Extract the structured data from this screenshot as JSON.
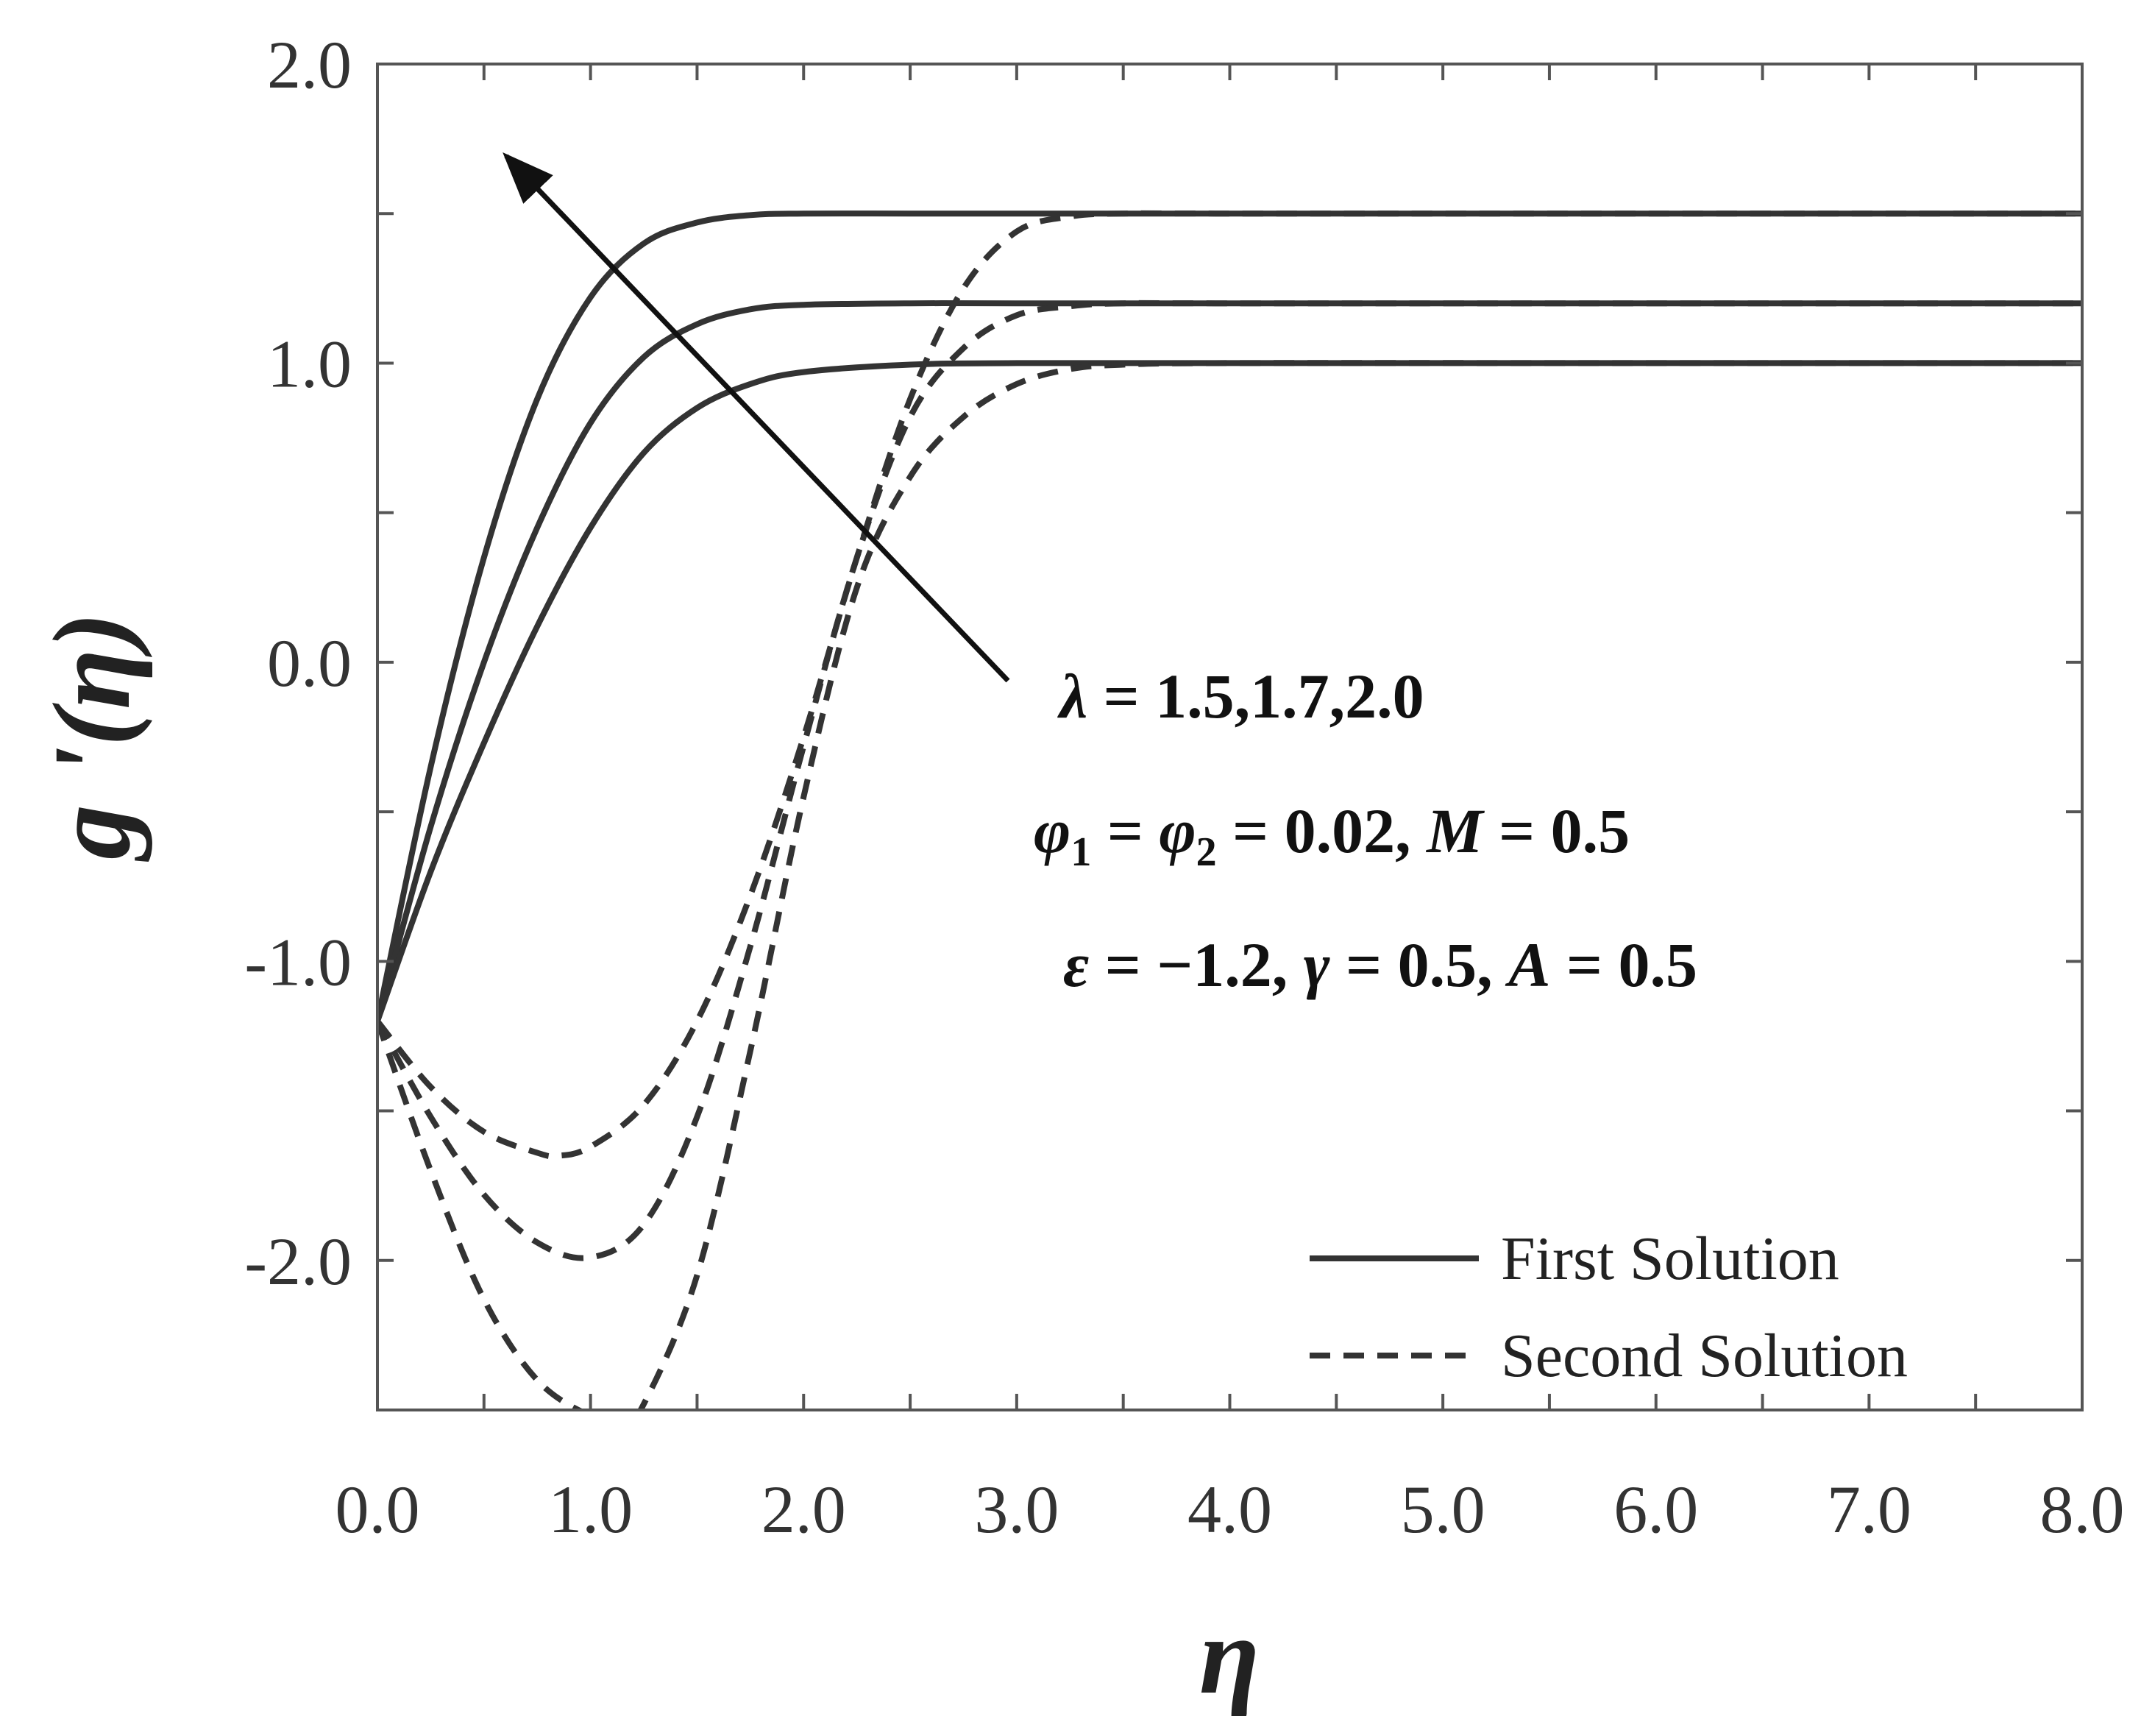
{
  "chart_data": {
    "type": "line",
    "xlabel": "η",
    "ylabel": "g '(η)",
    "xlim": [
      0,
      8
    ],
    "ylim": [
      -2.5,
      2.0
    ],
    "xticks": [
      0,
      0.5,
      1,
      1.5,
      2,
      2.5,
      3,
      3.5,
      4,
      4.5,
      5,
      5.5,
      6,
      6.5,
      7,
      7.5,
      8
    ],
    "x_tick_labels": [
      "0.0",
      "1.0",
      "2.0",
      "3.0",
      "4.0",
      "5.0",
      "6.0",
      "7.0",
      "8.0"
    ],
    "yticks": [
      2.0,
      1.5,
      1.0,
      0.5,
      0.0,
      -0.5,
      -1.0,
      -1.5,
      -2.0
    ],
    "y_tick_labels": [
      "2.0",
      "1.0",
      "0.0",
      "-1.0",
      "-2.0"
    ],
    "grid": false,
    "legend_position": "bottom-right",
    "legend": [
      {
        "label": "First Solution",
        "style": "solid"
      },
      {
        "label": "Second Solution",
        "style": "dashed"
      }
    ],
    "annotation": {
      "line1": {
        "sym": "λ",
        "rest": " = 1.5,1.7,2.0"
      },
      "line2": {
        "phi1": "φ",
        "sub1": "1",
        "eq1": " = ",
        "phi2": "φ",
        "sub2": "2",
        "eq2": " = 0.02, ",
        "m": "M",
        "eq3": " = 0.5"
      },
      "line3": {
        "eps": "ε",
        "eq1": " = −1.2, ",
        "gamma": "γ",
        "eq2": " = 0.5, ",
        "a": "A",
        "eq3": " = 0.5"
      },
      "arrow_direction": "increasing λ"
    },
    "series": [
      {
        "group": "First Solution",
        "style": "solid",
        "x": [
          0,
          0.25,
          0.5,
          0.75,
          1.0,
          1.25,
          1.5,
          1.75,
          2.0,
          2.5,
          3.0,
          4.0,
          6.0,
          8.0
        ],
        "y": [
          -1.2,
          -0.35,
          0.35,
          0.88,
          1.22,
          1.4,
          1.47,
          1.495,
          1.5,
          1.5,
          1.5,
          1.5,
          1.5,
          1.5
        ]
      },
      {
        "group": "First Solution",
        "style": "solid",
        "x": [
          0,
          0.25,
          0.5,
          0.75,
          1.0,
          1.25,
          1.5,
          1.75,
          2.0,
          2.5,
          3.0,
          4.0,
          6.0,
          8.0
        ],
        "y": [
          -1.2,
          -0.55,
          0.0,
          0.45,
          0.8,
          1.02,
          1.13,
          1.18,
          1.195,
          1.2,
          1.2,
          1.2,
          1.2,
          1.2
        ]
      },
      {
        "group": "First Solution",
        "style": "solid",
        "x": [
          0,
          0.25,
          0.5,
          0.75,
          1.0,
          1.25,
          1.5,
          1.75,
          2.0,
          2.5,
          3.0,
          4.0,
          6.0,
          8.0
        ],
        "y": [
          -1.2,
          -0.7,
          -0.27,
          0.12,
          0.45,
          0.7,
          0.85,
          0.93,
          0.97,
          0.995,
          1.0,
          1.0,
          1.0,
          1.0
        ]
      },
      {
        "group": "Second Solution",
        "style": "dashed",
        "x": [
          0,
          0.25,
          0.5,
          0.75,
          0.85,
          1.0,
          1.25,
          1.5,
          1.75,
          2.0,
          2.25,
          2.5,
          2.75,
          3.0,
          3.25,
          3.5,
          4.0,
          6.0,
          8.0
        ],
        "y": [
          -1.2,
          -1.42,
          -1.57,
          -1.64,
          -1.65,
          -1.62,
          -1.48,
          -1.2,
          -0.78,
          -0.25,
          0.35,
          0.88,
          1.25,
          1.44,
          1.49,
          1.5,
          1.5,
          1.5,
          1.5
        ]
      },
      {
        "group": "Second Solution",
        "style": "dashed",
        "x": [
          0,
          0.25,
          0.5,
          0.75,
          1.0,
          1.25,
          1.5,
          1.75,
          2.0,
          2.25,
          2.5,
          2.75,
          3.0,
          3.25,
          3.5,
          4.0,
          6.0,
          8.0
        ],
        "y": [
          -1.2,
          -1.52,
          -1.78,
          -1.94,
          -1.99,
          -1.88,
          -1.52,
          -0.95,
          -0.28,
          0.35,
          0.82,
          1.05,
          1.16,
          1.19,
          1.2,
          1.2,
          1.2,
          1.2
        ]
      },
      {
        "group": "Second Solution",
        "style": "dashed",
        "x": [
          0,
          0.25,
          0.5,
          0.75,
          1.0,
          1.15,
          1.25,
          1.5,
          1.75,
          2.0,
          2.25,
          2.5,
          2.75,
          3.0,
          3.25,
          3.5,
          4.0,
          6.0,
          8.0
        ],
        "y": [
          -1.2,
          -1.7,
          -2.13,
          -2.4,
          -2.52,
          -2.54,
          -2.48,
          -2.05,
          -1.3,
          -0.45,
          0.25,
          0.62,
          0.82,
          0.93,
          0.98,
          0.995,
          1.0,
          1.0,
          1.0
        ]
      }
    ]
  }
}
